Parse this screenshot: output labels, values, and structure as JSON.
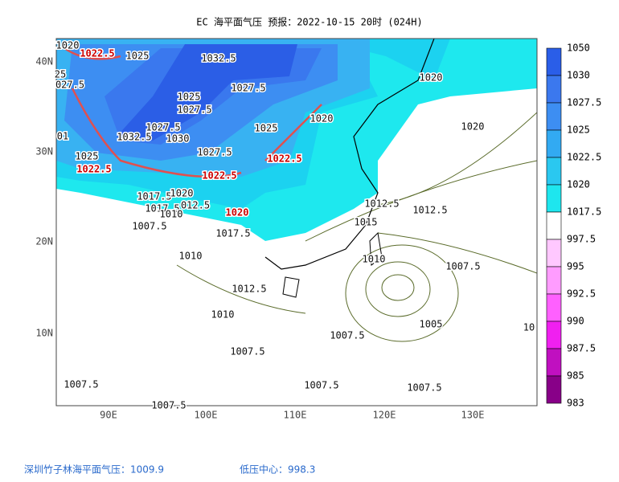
{
  "header": {
    "title": "EC 海平面气压 预报：2022-10-15 20时 (024H)"
  },
  "axes": {
    "lat_labels": [
      "40N",
      "30N",
      "20N",
      "10N"
    ],
    "lon_labels": [
      "90E",
      "100E",
      "110E",
      "120E",
      "130E"
    ]
  },
  "colorbar": {
    "labels": [
      "1050",
      "1030",
      "1027.5",
      "1025",
      "1022.5",
      "1020",
      "1017.5",
      "997.5",
      "995",
      "992.5",
      "990",
      "987.5",
      "985",
      "983"
    ]
  },
  "contour_labels": [
    "1020",
    "1022.5",
    "1025",
    "1032.5",
    "25",
    "027.5",
    "1027.5",
    "1025",
    "1027.5",
    "1020",
    "1025",
    "1020",
    "1027.5",
    "1032.5",
    "1030",
    "01",
    "1025",
    "1027.5",
    "1022.5",
    "1022.5",
    "1022.5",
    "1017.5",
    "1020",
    "1017.5",
    "012.5",
    "1020",
    "1010",
    "1007.5",
    "1012.5",
    "1015",
    "1012.5",
    "1017.5",
    "1010",
    "1010",
    "1007.5",
    "1012.5",
    "1010",
    "1005",
    "1007.5",
    "1007.5",
    "1007.5",
    "1007.5",
    "1007.5",
    "1007.5",
    "1020",
    "10"
  ],
  "footer": {
    "station": "深圳竹子林海平面气压：1009.9",
    "low_center": "低压中心：998.3"
  }
}
